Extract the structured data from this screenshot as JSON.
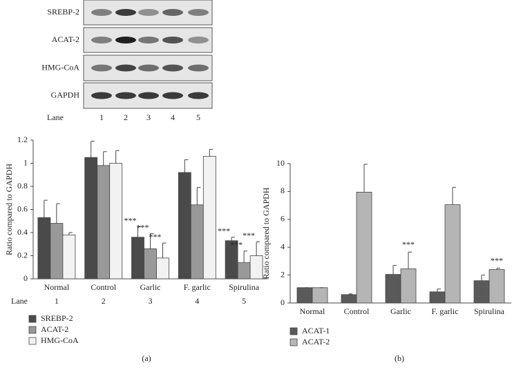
{
  "blot": {
    "labels": [
      "SREBP-2",
      "ACAT-2",
      "HMG-CoA",
      "GAPDH"
    ],
    "lane_label": "Lane",
    "lanes": [
      "1",
      "2",
      "3",
      "4",
      "5"
    ]
  },
  "chart_data": [
    {
      "type": "bar",
      "panel_label": "(a)",
      "y_label": "Ratio compared to GAPDH",
      "categories": [
        "Normal",
        "Control",
        "Garlic",
        "F. garlic",
        "Spirulina"
      ],
      "lane_label": "Lane",
      "lanes": [
        "1",
        "2",
        "3",
        "4",
        "5"
      ],
      "ylim": [
        0,
        1.2
      ],
      "yticks": [
        0,
        0.2,
        0.4,
        0.6,
        0.8,
        1,
        1.2
      ],
      "series": [
        {
          "name": "SREBP-2",
          "color": "#4a4a4a",
          "values": [
            0.53,
            1.05,
            0.36,
            0.92,
            0.33
          ],
          "errors": [
            0.15,
            0.14,
            0.09,
            0.11,
            0.03
          ],
          "labels": [
            null,
            null,
            "***",
            null,
            "***"
          ]
        },
        {
          "name": "ACAT-2",
          "color": "#999999",
          "values": [
            0.48,
            0.98,
            0.26,
            0.64,
            0.14
          ],
          "errors": [
            0.17,
            0.12,
            0.13,
            0.15,
            0.1
          ],
          "labels": [
            null,
            null,
            "***",
            null,
            "***"
          ]
        },
        {
          "name": "HMG-CoA",
          "color": "#f2f2f2",
          "values": [
            0.38,
            1.0,
            0.18,
            1.06,
            0.2
          ],
          "errors": [
            0.02,
            0.11,
            0.13,
            0.06,
            0.12
          ],
          "labels": [
            null,
            null,
            "***",
            null,
            "***"
          ]
        }
      ]
    },
    {
      "type": "bar",
      "panel_label": "(b)",
      "y_label": "Ratio compared to GAPDH",
      "categories": [
        "Normal",
        "Control",
        "Garlic",
        "F. garlic",
        "Spirulina"
      ],
      "ylim": [
        0,
        10
      ],
      "yticks": [
        0,
        2,
        4,
        6,
        8,
        10
      ],
      "series": [
        {
          "name": "ACAT-1",
          "color": "#5a5a5a",
          "values": [
            1.1,
            0.6,
            2.05,
            0.8,
            1.6
          ],
          "errors": [
            0,
            0.05,
            0.65,
            0.2,
            0.4
          ],
          "labels": [
            null,
            null,
            null,
            null,
            null
          ]
        },
        {
          "name": "ACAT-2",
          "color": "#b5b5b5",
          "values": [
            1.1,
            7.95,
            2.45,
            7.05,
            2.4
          ],
          "errors": [
            0,
            2.0,
            1.2,
            1.25,
            0.1
          ],
          "labels": [
            null,
            null,
            "***",
            null,
            "***"
          ]
        }
      ]
    }
  ]
}
